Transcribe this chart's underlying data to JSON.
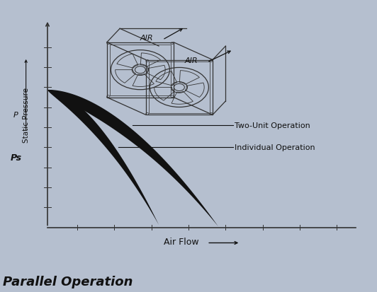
{
  "background_color": "#b5bfcf",
  "plot_bg_color": "#b5bfcf",
  "title": "Parallel Operation",
  "title_fontsize": 13,
  "title_fontstyle": "italic",
  "title_fontweight": "bold",
  "xlabel": "Air Flow",
  "ylabel": "Static Pressure",
  "ps_label": "Ps",
  "p_label": "P",
  "curve1_label": "Two-Unit Operation",
  "curve2_label": "Individual Operation",
  "air_label": "AIR",
  "curve_color": "#111111",
  "axis_color": "#333333",
  "text_color": "#111111",
  "fan_color": "#333333"
}
